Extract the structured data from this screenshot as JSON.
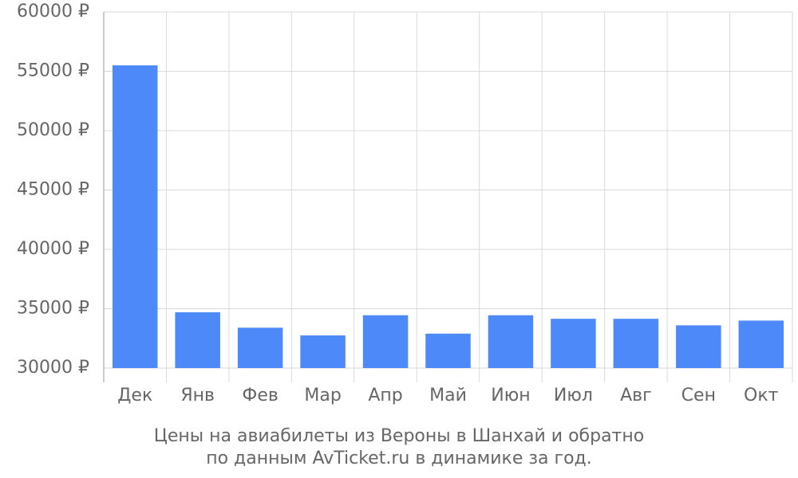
{
  "chart_data": {
    "type": "bar",
    "title": [
      "Цены на авиабилеты из Вероны в Шанхай и обратно",
      "по данным AvTicket.ru в динамике за год."
    ],
    "categories": [
      "Дек",
      "Янв",
      "Фев",
      "Мар",
      "Апр",
      "Май",
      "Июн",
      "Июл",
      "Авг",
      "Сен",
      "Окт"
    ],
    "values": [
      55500,
      34700,
      33400,
      32750,
      34450,
      32900,
      34450,
      34150,
      34150,
      33600,
      34000
    ],
    "color": "#4d89f9",
    "ylim": [
      30000,
      60000
    ],
    "yticks": [
      {
        "value": 30000,
        "label": "30000 ₽"
      },
      {
        "value": 35000,
        "label": "35000 ₽"
      },
      {
        "value": 40000,
        "label": "40000 ₽"
      },
      {
        "value": 45000,
        "label": "45000 ₽"
      },
      {
        "value": 50000,
        "label": "50000 ₽"
      },
      {
        "value": 55000,
        "label": "55000 ₽"
      },
      {
        "value": 60000,
        "label": "60000 ₽"
      }
    ],
    "grid": true
  }
}
